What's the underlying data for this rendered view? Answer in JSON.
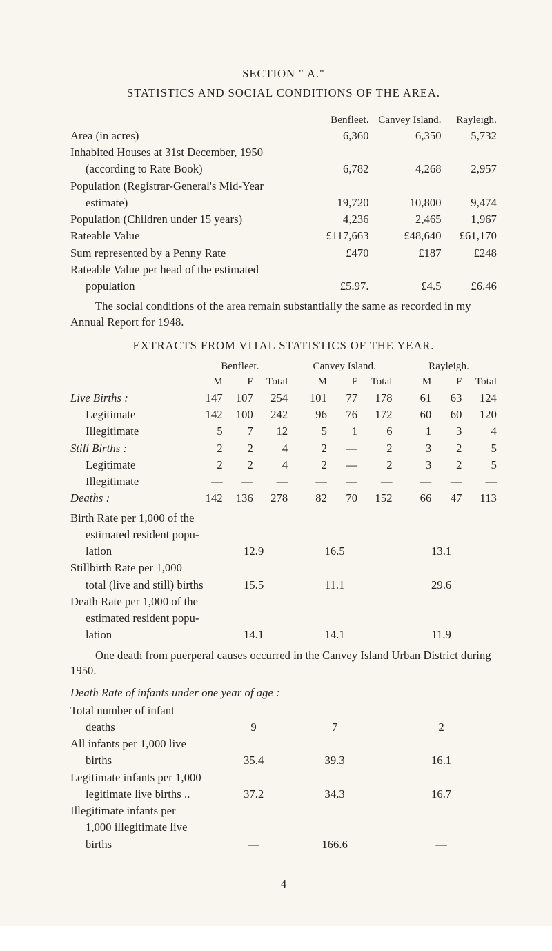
{
  "section_title": "SECTION  \" A.\"",
  "section_heading": "STATISTICS  AND  SOCIAL  CONDITIONS  OF  THE  AREA.",
  "area_table": {
    "col_headers": [
      "Benfleet.",
      "Canvey Island.",
      "Rayleigh."
    ],
    "rows": [
      {
        "label": "Area (in acres)",
        "benfleet": "6,360",
        "canvey": "6,350",
        "rayleigh": "5,732",
        "indent": 0
      },
      {
        "label": "Inhabited Houses at 31st December, 1950",
        "benfleet": "",
        "canvey": "",
        "rayleigh": "",
        "indent": 0
      },
      {
        "label": "(according to Rate Book)",
        "benfleet": "6,782",
        "canvey": "4,268",
        "rayleigh": "2,957",
        "indent": 5
      },
      {
        "label": "Population (Registrar-General's Mid-Year",
        "benfleet": "",
        "canvey": "",
        "rayleigh": "",
        "indent": 0
      },
      {
        "label": "estimate)",
        "benfleet": "19,720",
        "canvey": "10,800",
        "rayleigh": "9,474",
        "indent": 5
      },
      {
        "label": "Population (Children under 15 years)",
        "benfleet": "4,236",
        "canvey": "2,465",
        "rayleigh": "1,967",
        "indent": 0
      },
      {
        "label": "Rateable Value",
        "benfleet": "£117,663",
        "canvey": "£48,640",
        "rayleigh": "£61,170",
        "indent": 0
      },
      {
        "label": "Sum represented by a Penny Rate",
        "benfleet": "£470",
        "canvey": "£187",
        "rayleigh": "£248",
        "indent": 0
      },
      {
        "label": "Rateable Value per head of the estimated",
        "benfleet": "",
        "canvey": "",
        "rayleigh": "",
        "indent": 0
      },
      {
        "label": "population",
        "benfleet": "£5.97.",
        "canvey": "£4.5",
        "rayleigh": "£6.46",
        "indent": 5
      }
    ]
  },
  "social_para": "The social conditions of the area remain substantially the same as recorded in my Annual Report for 1948.",
  "extracts_title": "EXTRACTS  FROM  VITAL  STATISTICS  OF  THE  YEAR.",
  "vs": {
    "group_headers": [
      "Benfleet.",
      "Canvey Island.",
      "Rayleigh."
    ],
    "sub_headers": [
      "M",
      "F",
      "Total"
    ],
    "rows": [
      {
        "label": "Live Births :",
        "ital": true,
        "indent": 0,
        "b": [
          "147",
          "107",
          "254"
        ],
        "c": [
          "101",
          "77",
          "178"
        ],
        "r": [
          "61",
          "63",
          "124"
        ]
      },
      {
        "label": "Legitimate",
        "ital": false,
        "indent": 5,
        "b": [
          "142",
          "100",
          "242"
        ],
        "c": [
          "96",
          "76",
          "172"
        ],
        "r": [
          "60",
          "60",
          "120"
        ]
      },
      {
        "label": "Illegitimate",
        "ital": false,
        "indent": 5,
        "b": [
          "5",
          "7",
          "12"
        ],
        "c": [
          "5",
          "1",
          "6"
        ],
        "r": [
          "1",
          "3",
          "4"
        ]
      },
      {
        "label": "Still Births :",
        "ital": true,
        "indent": 0,
        "b": [
          "2",
          "2",
          "4"
        ],
        "c": [
          "2",
          "—",
          "2"
        ],
        "r": [
          "3",
          "2",
          "5"
        ]
      },
      {
        "label": "Legitimate",
        "ital": false,
        "indent": 5,
        "b": [
          "2",
          "2",
          "4"
        ],
        "c": [
          "2",
          "—",
          "2"
        ],
        "r": [
          "3",
          "2",
          "5"
        ]
      },
      {
        "label": "Illegitimate",
        "ital": false,
        "indent": 5,
        "b": [
          "—",
          "—",
          "—"
        ],
        "c": [
          "—",
          "—",
          "—"
        ],
        "r": [
          "—",
          "—",
          "—"
        ]
      },
      {
        "label": "Deaths :",
        "ital": true,
        "indent": 0,
        "b": [
          "142",
          "136",
          "278"
        ],
        "c": [
          "82",
          "70",
          "152"
        ],
        "r": [
          "66",
          "47",
          "113"
        ]
      }
    ]
  },
  "rates": {
    "rows": [
      {
        "lines": [
          "Birth Rate per 1,000 of the",
          "estimated resident popu-",
          "lation"
        ],
        "b": "12.9",
        "c": "16.5",
        "r": "13.1"
      },
      {
        "lines": [
          "Stillbirth Rate per 1,000",
          "total (live and still) births"
        ],
        "b": "15.5",
        "c": "11.1",
        "r": "29.6"
      },
      {
        "lines": [
          "Death Rate per 1,000 of the",
          "estimated resident popu-",
          "lation"
        ],
        "b": "14.1",
        "c": "14.1",
        "r": "11.9"
      }
    ]
  },
  "puerperal_para": "One death from puerperal causes occurred in the Canvey Island Urban District during 1950.",
  "infant_heading": "Death Rate of infants under one year of age :",
  "infant": {
    "rows": [
      {
        "lines": [
          "Total number of infant",
          "deaths"
        ],
        "b": "9",
        "c": "7",
        "r": "2"
      },
      {
        "lines": [
          "All infants per 1,000 live",
          "births"
        ],
        "b": "35.4",
        "c": "39.3",
        "r": "16.1"
      },
      {
        "lines": [
          "Legitimate infants per 1,000",
          "legitimate live births  .."
        ],
        "b": "37.2",
        "c": "34.3",
        "r": "16.7"
      },
      {
        "lines": [
          "Illegitimate infants per",
          "1,000 illegitimate live",
          "births"
        ],
        "b": "—",
        "c": "166.6",
        "r": "—"
      }
    ]
  },
  "page_number": "4"
}
